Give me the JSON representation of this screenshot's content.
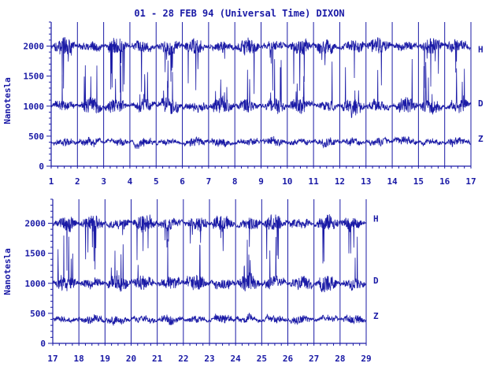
{
  "title": "01 - 28 FEB 94 (Universal Time) DIXON",
  "ylabel": "Nanotesla",
  "colors": {
    "ink": "#1a1aa6",
    "background": "#ffffff"
  },
  "chart_data": [
    {
      "type": "line",
      "x_range": [
        1,
        17
      ],
      "ylim": [
        0,
        2400
      ],
      "xticks": [
        "1",
        "2",
        "3",
        "4",
        "5",
        "6",
        "7",
        "8",
        "9",
        "10",
        "11",
        "12",
        "13",
        "14",
        "15",
        "16",
        "17"
      ],
      "yticks": [
        "0",
        "500",
        "1000",
        "1500",
        "2000"
      ],
      "grid": "vertical lines at each day",
      "series": [
        {
          "name": "H",
          "baseline": 2000,
          "label_value": 1950
        },
        {
          "name": "D",
          "baseline": 1000,
          "label_value": 1050
        },
        {
          "name": "Z",
          "baseline": 400,
          "label_value": 460
        }
      ]
    },
    {
      "type": "line",
      "x_range": [
        17,
        29
      ],
      "ylim": [
        0,
        2400
      ],
      "xticks": [
        "17",
        "18",
        "19",
        "20",
        "21",
        "22",
        "23",
        "24",
        "25",
        "26",
        "27",
        "28",
        "29"
      ],
      "yticks": [
        "0",
        "500",
        "1000",
        "1500",
        "2000"
      ],
      "grid": "vertical lines at each day",
      "series": [
        {
          "name": "H",
          "baseline": 2000,
          "label_value": 2080
        },
        {
          "name": "D",
          "baseline": 1000,
          "label_value": 1050
        },
        {
          "name": "Z",
          "baseline": 400,
          "label_value": 460
        }
      ]
    }
  ]
}
